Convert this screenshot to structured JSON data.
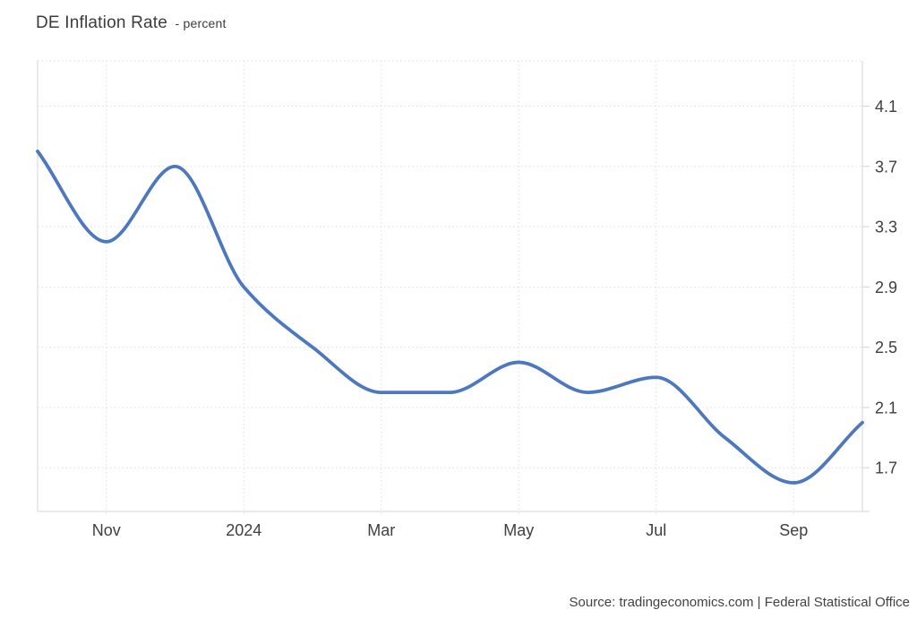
{
  "header": {
    "title": "DE Inflation Rate",
    "subtitle": "- percent"
  },
  "footer": {
    "source": "Source: tradingeconomics.com | Federal Statistical Office"
  },
  "chart_data": {
    "type": "line",
    "style": "spline",
    "title": "DE Inflation Rate - percent",
    "ylabel": "percent",
    "xlabel": "",
    "categories": [
      "Oct 2023",
      "Nov 2023",
      "Dec 2023",
      "Jan 2024",
      "Feb 2024",
      "Mar 2024",
      "Apr 2024",
      "May 2024",
      "Jun 2024",
      "Jul 2024",
      "Aug 2024",
      "Sep 2024",
      "Oct 2024"
    ],
    "series": [
      {
        "name": "DE Inflation Rate",
        "values": [
          3.8,
          3.2,
          3.7,
          2.9,
          2.5,
          2.2,
          2.2,
          2.4,
          2.2,
          2.3,
          1.9,
          1.6,
          2.0
        ]
      }
    ],
    "x_tick_labels": [
      {
        "index": 1,
        "label": "Nov"
      },
      {
        "index": 3,
        "label": "2024"
      },
      {
        "index": 5,
        "label": "Mar"
      },
      {
        "index": 7,
        "label": "May"
      },
      {
        "index": 9,
        "label": "Jul"
      },
      {
        "index": 11,
        "label": "Sep"
      }
    ],
    "y_ticks": [
      1.7,
      2.1,
      2.5,
      2.9,
      3.3,
      3.7,
      4.1
    ],
    "ylim": [
      1.41,
      4.4
    ],
    "grid": "dotted",
    "legend": "none",
    "axis_side": "right",
    "colors": {
      "line": "#4d78bd",
      "grid": "#dedede",
      "border": "#d4d4d4",
      "axis_text": "#3f3f3f",
      "background": "#ffffff"
    }
  }
}
